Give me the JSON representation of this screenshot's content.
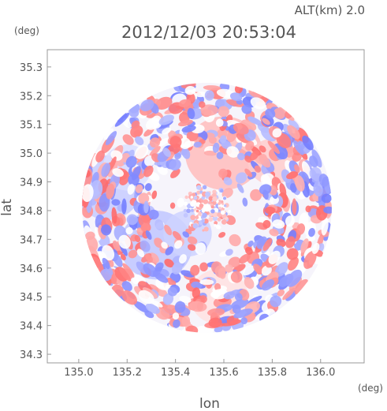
{
  "header": {
    "altitude_label": "ALT(km) 2.0",
    "timestamp": "2012/12/03 20:53:04"
  },
  "chart_data": {
    "type": "heatmap",
    "title": "2012/12/03 20:53:04",
    "subtitle": "ALT(km) 2.0",
    "xlabel": "lon",
    "ylabel": "lat",
    "x_unit": "(deg)",
    "y_unit": "(deg)",
    "xlim": [
      134.87,
      136.18
    ],
    "ylim": [
      34.27,
      35.36
    ],
    "x_ticks": [
      135.0,
      135.2,
      135.4,
      135.6,
      135.8,
      136.0
    ],
    "y_ticks": [
      34.3,
      34.4,
      34.5,
      34.6,
      34.7,
      34.8,
      34.9,
      35.0,
      35.1,
      35.2,
      35.3
    ],
    "x_tick_labels": [
      "135.0",
      "135.2",
      "135.4",
      "135.6",
      "135.8",
      "136.0"
    ],
    "y_tick_labels": [
      "34.3",
      "34.4",
      "34.5",
      "34.6",
      "34.7",
      "34.8",
      "34.9",
      "35.0",
      "35.1",
      "35.2",
      "35.3"
    ],
    "grid": false,
    "legend": "none",
    "domain": {
      "center_lon": 135.53,
      "center_lat": 34.81,
      "radius_deg": 0.52
    },
    "colors": {
      "positive": "#f07070",
      "negative": "#7a80f0",
      "neutral": "#ffffff"
    },
    "regions": [
      {
        "label": "positive",
        "lon": 135.6,
        "lat": 35.0,
        "r": 0.16,
        "v": 0.45
      },
      {
        "label": "positive",
        "lon": 135.8,
        "lat": 34.97,
        "r": 0.1,
        "v": 0.35
      },
      {
        "label": "negative",
        "lon": 135.12,
        "lat": 34.88,
        "r": 0.14,
        "v": -0.4
      },
      {
        "label": "negative",
        "lon": 135.32,
        "lat": 34.68,
        "r": 0.15,
        "v": -0.45
      },
      {
        "label": "negative",
        "lon": 135.45,
        "lat": 34.72,
        "r": 0.1,
        "v": -0.35
      },
      {
        "label": "positive",
        "lon": 135.58,
        "lat": 34.5,
        "r": 0.12,
        "v": 0.2
      },
      {
        "label": "negative",
        "lon": 135.2,
        "lat": 34.95,
        "r": 0.1,
        "v": -0.25
      }
    ]
  }
}
